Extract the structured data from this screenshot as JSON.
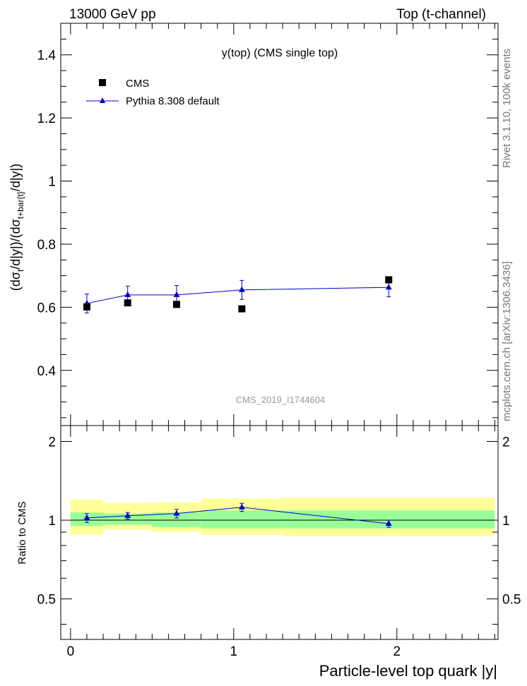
{
  "header": {
    "left": "13000 GeV pp",
    "right": "Top (t-channel)"
  },
  "side_labels": {
    "top": "Rivet 3.1.10,  100k events",
    "bottom": "mcplots.cern.ch [arXiv:1306.3436]"
  },
  "chart_data": [
    {
      "type": "scatter",
      "title": "y(top) (CMS single top)",
      "watermark": "CMS_2019_I1744604",
      "ylabel_parts": [
        "(d",
        "σ",
        "t",
        "/d|y|)/(d",
        "σ",
        "t+bar{t}",
        "/d|y|)"
      ],
      "xlim": [
        -0.06,
        2.62
      ],
      "ylim": [
        0.225,
        1.5
      ],
      "y_ticks": [
        0.4,
        0.6,
        0.8,
        1,
        1.2,
        1.4
      ],
      "y_tick_labels": [
        "0.4",
        "0.6",
        "0.8",
        "1",
        "1.2",
        "1.4"
      ],
      "legend_position": "top-left",
      "series": [
        {
          "name": "CMS",
          "marker": "square",
          "color": "#000000",
          "x": [
            0.1,
            0.35,
            0.65,
            1.05,
            1.95
          ],
          "y": [
            0.601,
            0.614,
            0.609,
            0.595,
            0.687
          ]
        },
        {
          "name": "Pythia 8.308 default",
          "marker": "triangle",
          "color": "#0000cc",
          "x": [
            0.1,
            0.35,
            0.65,
            1.05,
            1.95
          ],
          "y": [
            0.612,
            0.639,
            0.639,
            0.655,
            0.663
          ],
          "err": [
            0.03,
            0.028,
            0.03,
            0.03,
            0.03
          ]
        }
      ]
    },
    {
      "type": "scatter",
      "ylabel": "Ratio to CMS",
      "xlabel": "Particle-level top quark |y|",
      "xlim": [
        -0.06,
        2.62
      ],
      "ylim": [
        0.35,
        2.3
      ],
      "y_ticks": [
        0.5,
        1,
        2
      ],
      "y_tick_labels": [
        "0.5",
        "1",
        "2"
      ],
      "x_ticks": [
        0,
        1,
        2
      ],
      "x_tick_labels": [
        "0",
        "1",
        "2"
      ],
      "bins": [
        [
          0,
          0.2
        ],
        [
          0.2,
          0.5
        ],
        [
          0.5,
          0.8
        ],
        [
          0.8,
          1.3
        ],
        [
          1.3,
          2.6
        ]
      ],
      "band_inner": [
        [
          0.95,
          1.07
        ],
        [
          0.96,
          1.06
        ],
        [
          0.94,
          1.07
        ],
        [
          0.93,
          1.09
        ],
        [
          0.93,
          1.09
        ]
      ],
      "band_outer": [
        [
          0.88,
          1.2
        ],
        [
          0.92,
          1.16
        ],
        [
          0.9,
          1.17
        ],
        [
          0.88,
          1.21
        ],
        [
          0.87,
          1.22
        ]
      ],
      "series": [
        {
          "name": "Pythia 8.308 default",
          "color": "#0000cc",
          "x": [
            0.1,
            0.35,
            0.65,
            1.05,
            1.95
          ],
          "y": [
            1.02,
            1.04,
            1.06,
            1.12,
            0.97
          ],
          "err": [
            0.04,
            0.03,
            0.04,
            0.04,
            0.03
          ]
        }
      ]
    }
  ]
}
